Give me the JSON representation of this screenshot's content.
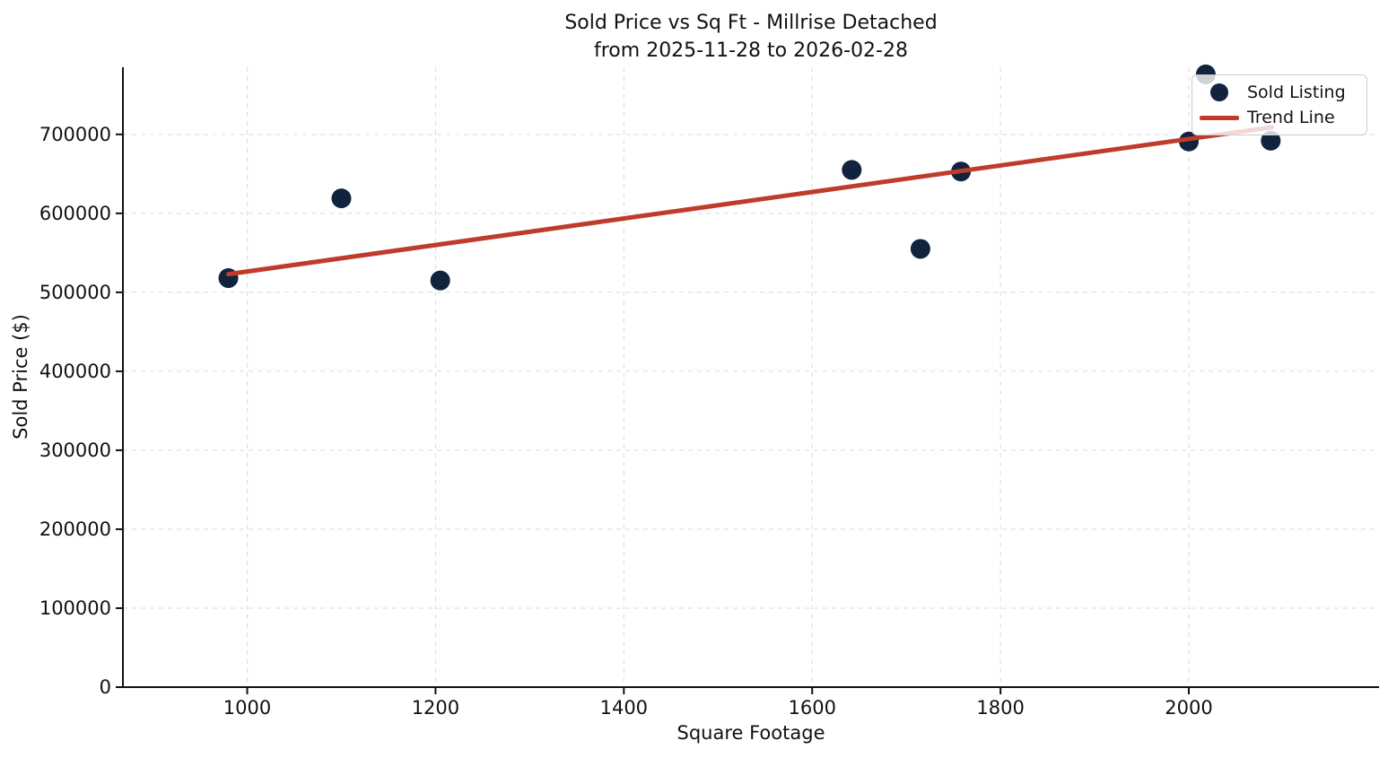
{
  "chart_data": {
    "type": "scatter",
    "title": "Sold Price vs Sq Ft - Millrise Detached",
    "subtitle": "from 2025-11-28 to 2026-02-28",
    "xlabel": "Square Footage",
    "ylabel": "Sold Price ($)",
    "xlim": [
      868,
      2202
    ],
    "ylim": [
      0,
      785000
    ],
    "x_ticks": [
      1000,
      1200,
      1400,
      1600,
      1800,
      2000
    ],
    "y_ticks": [
      0,
      100000,
      200000,
      300000,
      400000,
      500000,
      600000,
      700000
    ],
    "grid": {
      "visible": true,
      "style": "dashed"
    },
    "legend": {
      "position": "upper right",
      "items": [
        {
          "label": "Sold Listing",
          "marker": "circle"
        },
        {
          "label": "Trend Line",
          "marker": "line"
        }
      ]
    },
    "series": [
      {
        "name": "Sold Listing",
        "type": "scatter",
        "points": [
          [
            980,
            518000
          ],
          [
            1100,
            619000
          ],
          [
            1205,
            515000
          ],
          [
            1642,
            655000
          ],
          [
            1715,
            555000
          ],
          [
            1758,
            653000
          ],
          [
            2000,
            691000
          ],
          [
            2018,
            776000
          ],
          [
            2087,
            692000
          ]
        ]
      },
      {
        "name": "Trend Line",
        "type": "line",
        "points": [
          [
            980,
            523000
          ],
          [
            2088,
            709000
          ]
        ]
      }
    ],
    "colors": {
      "marker": "#12233e",
      "trend_line": "#bf3b2b",
      "grid": "#d9d9d9",
      "axis": "#111111",
      "text": "#111111"
    }
  }
}
